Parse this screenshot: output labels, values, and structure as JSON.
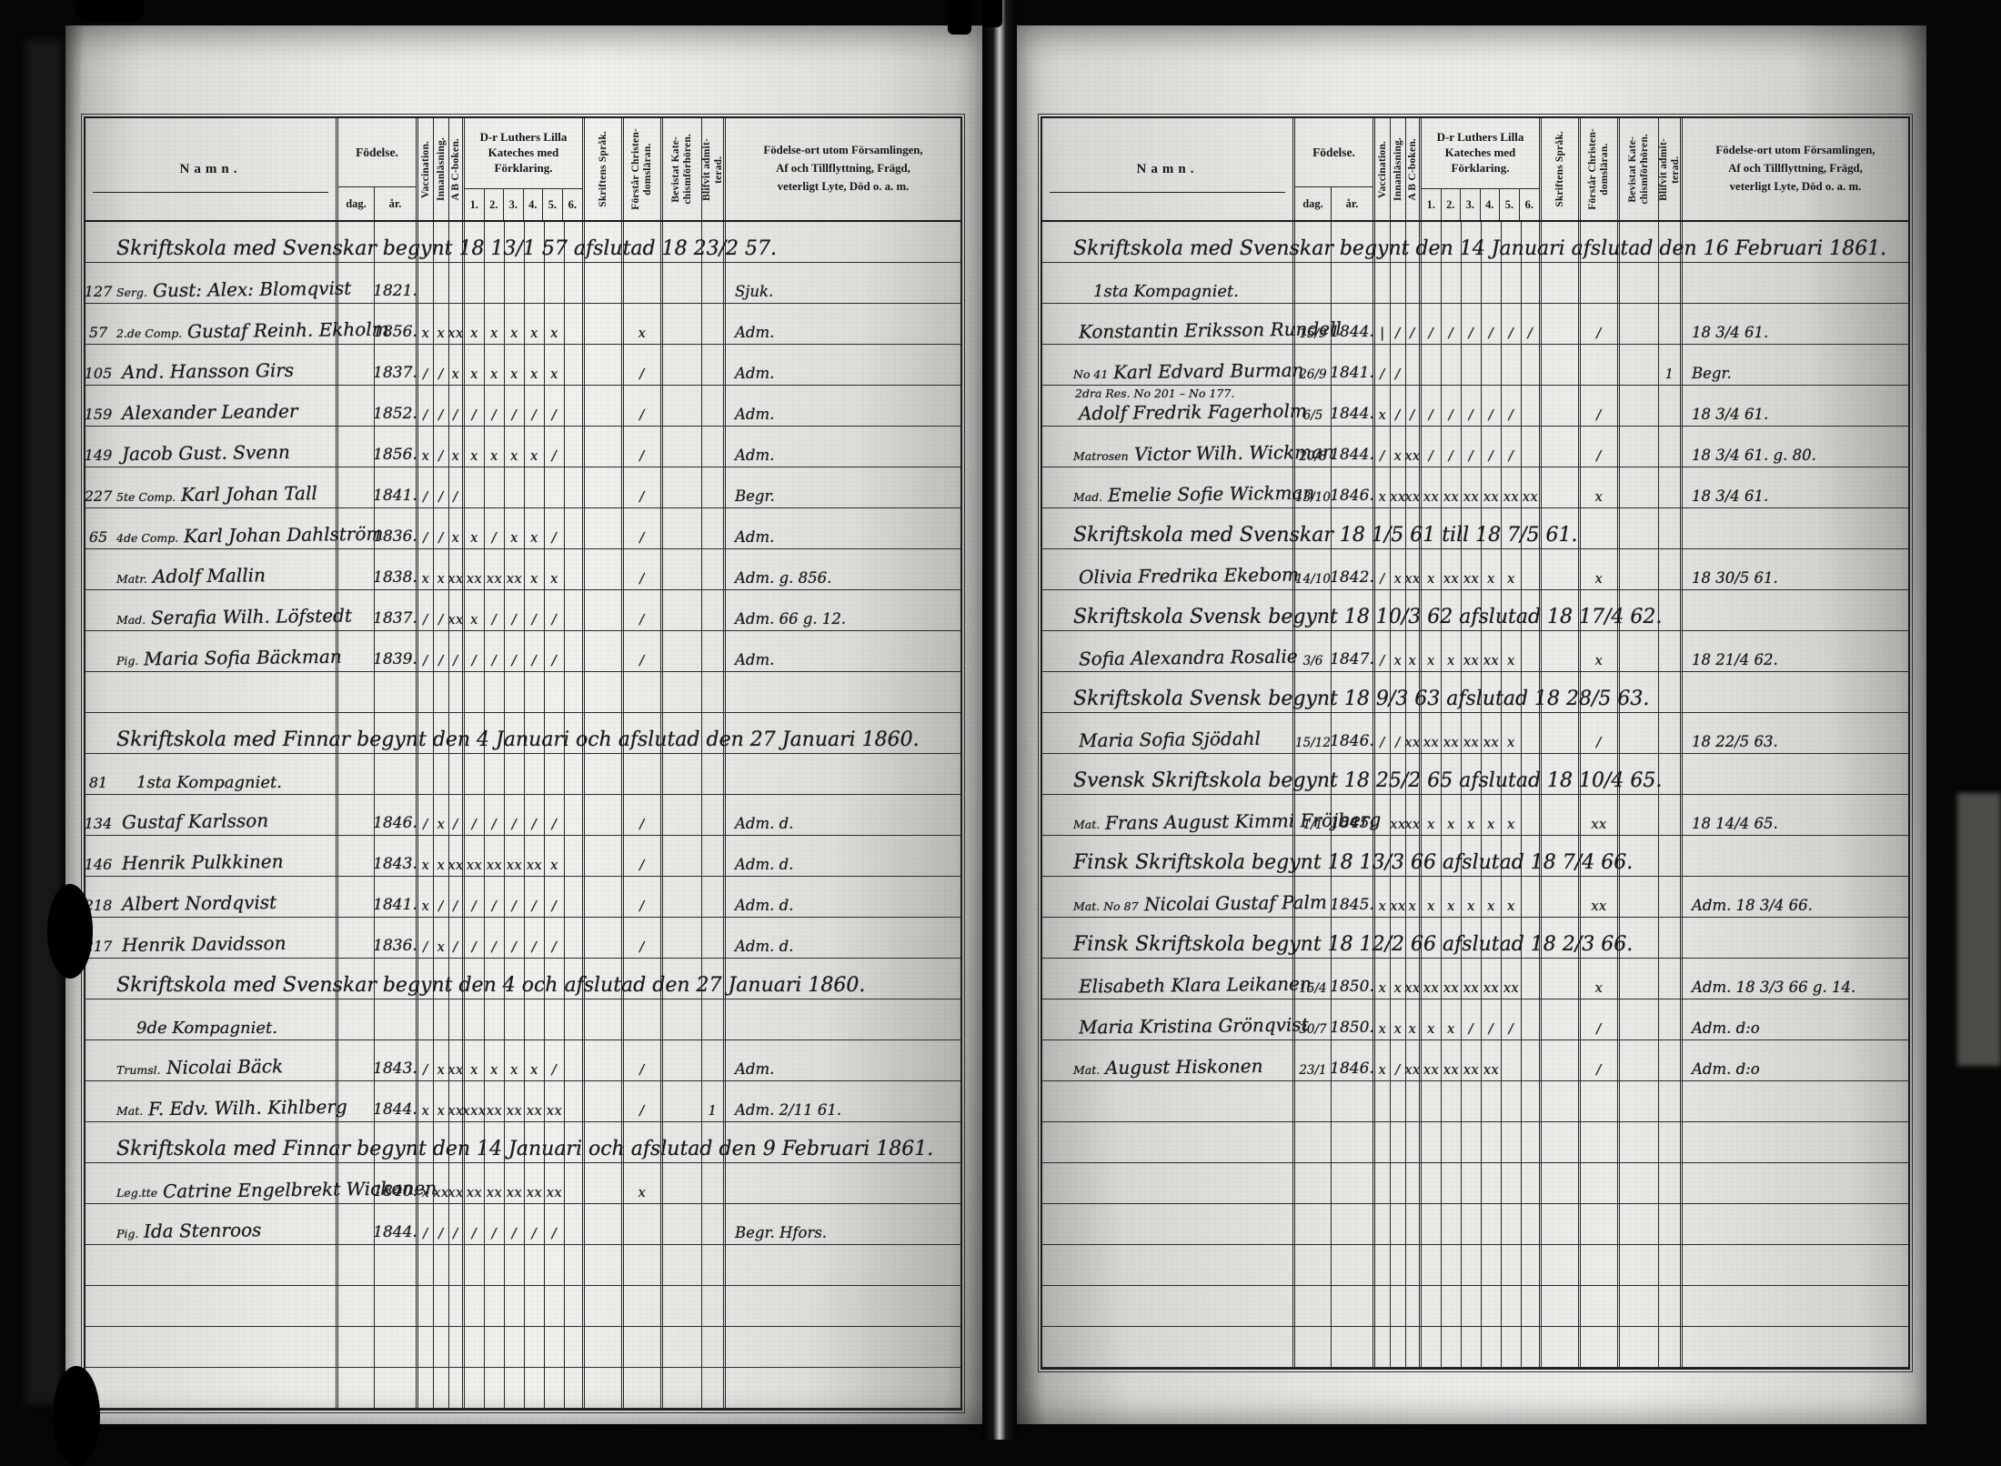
{
  "columns": {
    "namn": "Namn.",
    "fodelse": "Födelse.",
    "dag": "dag.",
    "ar": "år.",
    "vaccination": "Vaccination.",
    "innanlasning": "Innanläsning.",
    "abc": "A B C-boken.",
    "kateches": "D-r Luthers Lilla\nKateches med\nFörklaring.",
    "kateches_cols": [
      "1.",
      "2.",
      "3.",
      "4.",
      "5.",
      "6."
    ],
    "sprak": "Skriftens Språk.",
    "forstar": "Förstår Christen-\ndomsläran.",
    "bevistat": "Bevistat Kate-\nchismförhören.",
    "blifvit": "Blifvit admit-\nterad.",
    "remarks": "Födelse-ort utom Församlingen,\nAf och Tillflyttning, Frägd,\nveterligt Lyte, Död o. a. m."
  },
  "pages": [
    {
      "side": "left",
      "rows": [
        {
          "t": "sec",
          "text": "Skriftskola med Svenskar begynt 18 13/1 57 afslutad 18 23/2 57."
        },
        {
          "t": "e",
          "no": "127",
          "margin": "Serg.",
          "name": "Gust: Alex: Blomqvist",
          "ar": "1821.",
          "remark": "Sjuk."
        },
        {
          "t": "e",
          "no": "57",
          "margin": "2.de Comp.",
          "name": "Gustaf Reinh. Ekholm",
          "ar": "1856.",
          "vacc": "x",
          "innan": "x",
          "abc": "xx",
          "k": [
            "x",
            "x",
            "x",
            "x",
            "x",
            ""
          ],
          "forstar": "x",
          "remark": "Adm."
        },
        {
          "t": "e",
          "no": "105",
          "name": "And. Hansson Girs",
          "ar": "1837.",
          "vacc": "/",
          "innan": "/",
          "abc": "x",
          "k": [
            "x",
            "x",
            "x",
            "x",
            "x",
            ""
          ],
          "forstar": "/",
          "remark": "Adm."
        },
        {
          "t": "e",
          "no": "159",
          "name": "Alexander Leander",
          "ar": "1852.",
          "vacc": "/",
          "innan": "/",
          "abc": "/",
          "k": [
            "/",
            "/",
            "/",
            "/",
            "/",
            ""
          ],
          "forstar": "/",
          "remark": "Adm."
        },
        {
          "t": "e",
          "no": "149",
          "name": "Jacob Gust. Svenn",
          "ar": "1856.",
          "vacc": "x",
          "innan": "/",
          "abc": "x",
          "k": [
            "x",
            "x",
            "x",
            "x",
            "/",
            ""
          ],
          "forstar": "/",
          "remark": "Adm."
        },
        {
          "t": "e",
          "no": "227",
          "margin": "5te Comp.",
          "name": "Karl Johan Tall",
          "ar": "1841.",
          "vacc": "/",
          "innan": "/",
          "abc": "/",
          "forstar": "/",
          "remark": "Begr."
        },
        {
          "t": "e",
          "no": "65",
          "margin": "4de Comp.",
          "name": "Karl Johan Dahlström",
          "ar": "1836.",
          "vacc": "/",
          "innan": "/",
          "abc": "x",
          "k": [
            "x",
            "/",
            "x",
            "x",
            "/",
            ""
          ],
          "forstar": "/",
          "remark": "Adm."
        },
        {
          "t": "e",
          "margin": "Matr.",
          "name": "Adolf Mallin",
          "ar": "1838.",
          "vacc": "x",
          "innan": "x",
          "abc": "xx",
          "k": [
            "xx",
            "xx",
            "xx",
            "x",
            "x",
            ""
          ],
          "forstar": "/",
          "remark": "Adm. g. 856."
        },
        {
          "t": "e",
          "margin": "Mad.",
          "name": "Serafia Wilh. Löfstedt",
          "ar": "1837.",
          "vacc": "/",
          "innan": "/",
          "abc": "xx",
          "k": [
            "x",
            "/",
            "/",
            "/",
            "/",
            ""
          ],
          "forstar": "/",
          "remark": "Adm. 66 g. 12."
        },
        {
          "t": "e",
          "margin": "Pig.",
          "name": "Maria Sofia Bäckman",
          "ar": "1839.",
          "vacc": "/",
          "innan": "/",
          "abc": "/",
          "k": [
            "/",
            "/",
            "/",
            "/",
            "/",
            ""
          ],
          "forstar": "/",
          "remark": "Adm."
        },
        {
          "t": "b"
        },
        {
          "t": "sec",
          "text": "Skriftskola med Finnar begynt den 4 Januari och afslutad den 27 Januari 1860."
        },
        {
          "t": "sub",
          "no": "81",
          "text": "1sta Kompagniet."
        },
        {
          "t": "e",
          "no": "134",
          "name": "Gustaf Karlsson",
          "ar": "1846.",
          "vacc": "/",
          "innan": "x",
          "abc": "/",
          "k": [
            "/",
            "/",
            "/",
            "/",
            "/",
            ""
          ],
          "forstar": "/",
          "remark": "Adm. d."
        },
        {
          "t": "e",
          "no": "146",
          "name": "Henrik Pulkkinen",
          "ar": "1843.",
          "vacc": "x",
          "innan": "x",
          "abc": "xx",
          "k": [
            "xx",
            "xx",
            "xx",
            "xx",
            "x",
            ""
          ],
          "forstar": "/",
          "remark": "Adm. d."
        },
        {
          "t": "e",
          "no": "218",
          "name": "Albert Nordqvist",
          "ar": "1841.",
          "vacc": "x",
          "innan": "/",
          "abc": "/",
          "k": [
            "/",
            "/",
            "/",
            "/",
            "/",
            ""
          ],
          "forstar": "/",
          "remark": "Adm. d."
        },
        {
          "t": "e",
          "no": "217",
          "name": "Henrik Davidsson",
          "ar": "1836.",
          "vacc": "/",
          "innan": "x",
          "abc": "/",
          "k": [
            "/",
            "/",
            "/",
            "/",
            "/",
            ""
          ],
          "forstar": "/",
          "remark": "Adm. d."
        },
        {
          "t": "sec",
          "text": "Skriftskola med Svenskar begynt den 4 och afslutad den 27 Januari 1860."
        },
        {
          "t": "sub",
          "text": "9de Kompagniet."
        },
        {
          "t": "e",
          "margin": "Trumsl.",
          "name": "Nicolai Bäck",
          "ar": "1843.",
          "vacc": "/",
          "innan": "x",
          "abc": "xx",
          "k": [
            "x",
            "x",
            "x",
            "x",
            "/",
            ""
          ],
          "forstar": "/",
          "remark": "Adm."
        },
        {
          "t": "e",
          "margin": "Mat.",
          "name": "F. Edv. Wilh. Kihlberg",
          "ar": "1844.",
          "vacc": "x",
          "innan": "x",
          "abc": "xx",
          "k": [
            "xxx",
            "xx",
            "xx",
            "xx",
            "xx",
            ""
          ],
          "forstar": "/",
          "blifvit": "1",
          "remark": "Adm. 2/11 61."
        },
        {
          "t": "sec",
          "text": "Skriftskola med Finnar begynt den 14 Januari och afslutad den 9 Februari 1861."
        },
        {
          "t": "e",
          "margin": "Leg.tte",
          "name": "Catrine Engelbrekt Wickonen",
          "ar": "1840.",
          "vacc": "x",
          "innan": "xx",
          "abc": "xx",
          "k": [
            "xx",
            "xx",
            "xx",
            "xx",
            "xx",
            ""
          ],
          "forstar": "x",
          "remark": ""
        },
        {
          "t": "e",
          "margin": "Pig.",
          "name": "Ida Stenroos",
          "ar": "1844.",
          "vacc": "/",
          "innan": "/",
          "abc": "/",
          "k": [
            "/",
            "/",
            "/",
            "/",
            "/",
            ""
          ],
          "remark": "Begr. Hfors."
        },
        {
          "t": "b"
        },
        {
          "t": "b"
        },
        {
          "t": "b"
        },
        {
          "t": "b"
        }
      ]
    },
    {
      "side": "right",
      "rows": [
        {
          "t": "sec",
          "text": "Skriftskola med Svenskar begynt den 14 Januari afslutad den 16 Februari 1861."
        },
        {
          "t": "sub",
          "text": "1sta Kompagniet."
        },
        {
          "t": "e",
          "name": "Konstantin Eriksson Rundell",
          "dag": "15/9",
          "ar": "1844.",
          "vacc": "|",
          "innan": "/",
          "abc": "/",
          "k": [
            "/",
            "/",
            "/",
            "/",
            "/",
            "/"
          ],
          "forstar": "/",
          "remark": "18 3/4 61."
        },
        {
          "t": "e",
          "margin": "No 41",
          "name": "Karl Edvard Burman",
          "dag": "26/9",
          "ar": "1841.",
          "vacc": "/",
          "innan": "/",
          "blifvit": "1",
          "remark": "Begr."
        },
        {
          "t": "e",
          "note": "2dra Res. No 201 – No 177.",
          "name": "Adolf Fredrik Fagerholm",
          "dag": "6/5",
          "ar": "1844.",
          "vacc": "x",
          "innan": "/",
          "abc": "/",
          "k": [
            "/",
            "/",
            "/",
            "/",
            "/",
            ""
          ],
          "forstar": "/",
          "remark": "18 3/4 61."
        },
        {
          "t": "e",
          "margin": "Matrosen",
          "name": "Victor Wilh. Wickman",
          "dag": "20/8",
          "ar": "1844.",
          "vacc": "/",
          "innan": "x",
          "abc": "xx",
          "k": [
            "/",
            "/",
            "/",
            "/",
            "/",
            ""
          ],
          "forstar": "/",
          "remark": "18 3/4 61. g. 80."
        },
        {
          "t": "e",
          "margin": "Mad.",
          "name": "Emelie Sofie Wickman",
          "dag": "13/10",
          "ar": "1846.",
          "vacc": "x",
          "innan": "xx",
          "abc": "xx",
          "k": [
            "xx",
            "xx",
            "xx",
            "xx",
            "xx",
            "xx"
          ],
          "forstar": "x",
          "remark": "18 3/4 61."
        },
        {
          "t": "sec",
          "text": "Skriftskola med Svenskar 18 1/5 61 till 18 7/5 61."
        },
        {
          "t": "e",
          "name": "Olivia Fredrika Ekebom",
          "dag": "14/10",
          "ar": "1842.",
          "vacc": "/",
          "innan": "x",
          "abc": "xx",
          "k": [
            "x",
            "xx",
            "xx",
            "x",
            "x",
            ""
          ],
          "forstar": "x",
          "remark": "18 30/5 61."
        },
        {
          "t": "sec",
          "text": "Skriftskola Svensk begynt 18 10/3 62 afslutad 18 17/4 62."
        },
        {
          "t": "e",
          "name": "Sofia Alexandra Rosalie",
          "dag": "3/6",
          "ar": "1847.",
          "vacc": "/",
          "innan": "x",
          "abc": "x",
          "k": [
            "x",
            "x",
            "xx",
            "xx",
            "x",
            ""
          ],
          "forstar": "x",
          "remark": "18 21/4 62."
        },
        {
          "t": "sec",
          "text": "Skriftskola Svensk begynt 18 9/3 63 afslutad 18 28/5 63."
        },
        {
          "t": "e",
          "name": "Maria Sofia Sjödahl",
          "dag": "15/12",
          "ar": "1846.",
          "vacc": "/",
          "innan": "/",
          "abc": "xx",
          "k": [
            "xx",
            "xx",
            "xx",
            "xx",
            "x",
            ""
          ],
          "forstar": "/",
          "remark": "18 22/5 63."
        },
        {
          "t": "sec",
          "text": "Svensk Skriftskola begynt 18 25/2 65 afslutad 18 10/4 65."
        },
        {
          "t": "e",
          "margin": "Mat.",
          "name": "Frans August Kimmi Fröjberg",
          "dag": "1/1",
          "ar": "1845.",
          "innan": "xx",
          "abc": "xx",
          "k": [
            "x",
            "x",
            "x",
            "x",
            "x",
            ""
          ],
          "forstar": "xx",
          "remark": "18 14/4 65."
        },
        {
          "t": "sec",
          "text": "Finsk Skriftskola begynt 18 13/3 66 afslutad 18 7/4 66."
        },
        {
          "t": "e",
          "margin": "Mat. No 87",
          "name": "Nicolai Gustaf Palm",
          "ar": "1845.",
          "vacc": "x",
          "innan": "xx",
          "abc": "x",
          "k": [
            "x",
            "x",
            "x",
            "x",
            "x",
            ""
          ],
          "forstar": "xx",
          "remark": "Adm. 18 3/4 66."
        },
        {
          "t": "sec",
          "text": "Finsk Skriftskola begynt 18 12/2 66 afslutad 18 2/3 66."
        },
        {
          "t": "e",
          "name": "Elisabeth Klara Leikanen",
          "dag": "15/4",
          "ar": "1850.",
          "vacc": "x",
          "innan": "x",
          "abc": "xx",
          "k": [
            "xx",
            "xx",
            "xx",
            "xx",
            "xx",
            ""
          ],
          "forstar": "x",
          "remark": "Adm. 18 3/3 66 g. 14."
        },
        {
          "t": "e",
          "name": "Maria Kristina Grönqvist",
          "dag": "30/7",
          "ar": "1850.",
          "vacc": "x",
          "innan": "x",
          "abc": "x",
          "k": [
            "x",
            "x",
            "/",
            "/",
            "/",
            ""
          ],
          "forstar": "/",
          "remark": "Adm. d:o"
        },
        {
          "t": "e",
          "margin": "Mat.",
          "name": "August Hiskonen",
          "dag": "23/1",
          "ar": "1846.",
          "vacc": "x",
          "innan": "/",
          "abc": "xx",
          "k": [
            "xx",
            "xx",
            "xx",
            "xx",
            "",
            ""
          ],
          "forstar": "/",
          "remark": "Adm. d:o"
        },
        {
          "t": "b"
        },
        {
          "t": "b"
        },
        {
          "t": "b"
        },
        {
          "t": "b"
        },
        {
          "t": "b"
        },
        {
          "t": "b"
        },
        {
          "t": "b"
        }
      ]
    }
  ]
}
